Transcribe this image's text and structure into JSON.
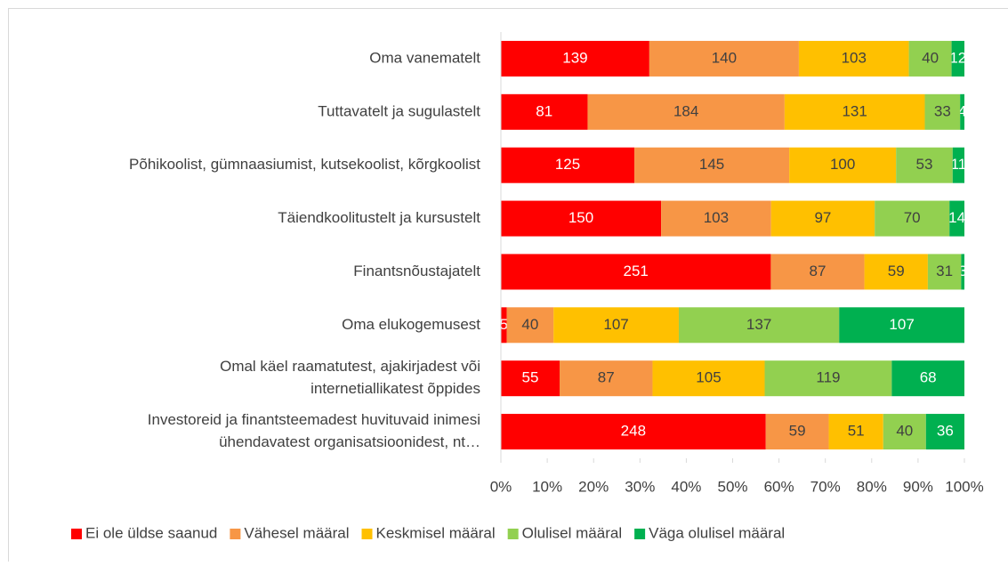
{
  "chart_data": {
    "type": "bar",
    "orientation": "horizontal",
    "stacking": "percent",
    "categories": [
      "Oma vanematelt",
      "Tuttavatelt ja sugulastelt",
      "Põhikoolist, gümnaasiumist, kutsekoolist, kõrgkoolist",
      "Täiendkoolitustelt ja kursustelt",
      "Finantsnõustajatelt",
      "Oma elukogemusest",
      [
        "Omal käel raamatutest, ajakirjadest või",
        "internetiallikatest õppides"
      ],
      [
        "Investoreid ja finantsteemadest huvituvaid inimesi",
        "ühendavatest organisatsioonidest, nt…"
      ]
    ],
    "series": [
      {
        "name": "Ei ole üldse saanud",
        "color": "#ff0000",
        "label_color": "#ffffff",
        "values": [
          139,
          81,
          125,
          150,
          251,
          5,
          55,
          248
        ]
      },
      {
        "name": "Vähesel määral",
        "color": "#f79646",
        "label_color": "#404040",
        "values": [
          140,
          184,
          145,
          103,
          87,
          40,
          87,
          59
        ]
      },
      {
        "name": "Keskmisel määral",
        "color": "#ffc000",
        "label_color": "#404040",
        "values": [
          103,
          131,
          100,
          97,
          59,
          107,
          105,
          51
        ]
      },
      {
        "name": "Olulisel määral",
        "color": "#92d050",
        "label_color": "#404040",
        "values": [
          40,
          33,
          53,
          70,
          31,
          137,
          119,
          40
        ]
      },
      {
        "name": "Väga olulisel määral",
        "color": "#00b050",
        "label_color": "#ffffff",
        "values": [
          12,
          4,
          11,
          14,
          3,
          107,
          68,
          36
        ]
      }
    ],
    "xlim": [
      0,
      100
    ],
    "xticks": [
      {
        "value": 0,
        "label": "0%"
      },
      {
        "value": 10,
        "label": "10%"
      },
      {
        "value": 20,
        "label": "20%"
      },
      {
        "value": 30,
        "label": "30%"
      },
      {
        "value": 40,
        "label": "40%"
      },
      {
        "value": 50,
        "label": "50%"
      },
      {
        "value": 60,
        "label": "60%"
      },
      {
        "value": 70,
        "label": "70%"
      },
      {
        "value": 80,
        "label": "80%"
      },
      {
        "value": 90,
        "label": "90%"
      },
      {
        "value": 100,
        "label": "100%"
      }
    ],
    "legend": "bottom"
  }
}
